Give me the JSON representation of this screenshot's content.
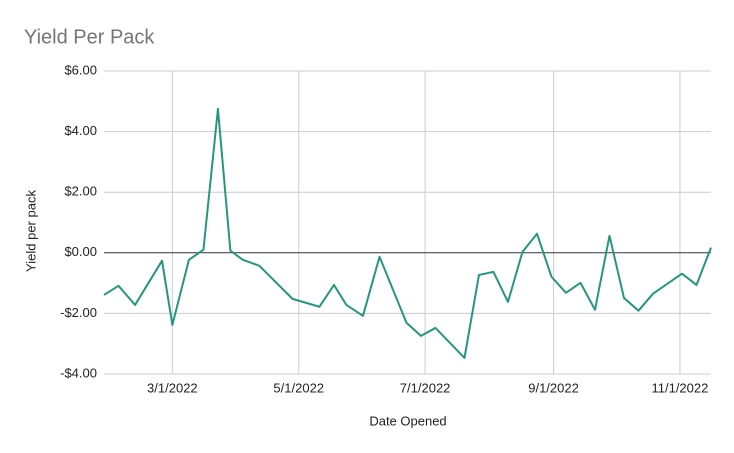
{
  "chart_data": {
    "type": "line",
    "title": "Yield Per Pack",
    "xlabel": "Date Opened",
    "ylabel": "Yield per pack",
    "x": [
      "2022-01-27",
      "2022-02-03",
      "2022-02-11",
      "2022-02-24",
      "2022-03-01",
      "2022-03-09",
      "2022-03-16",
      "2022-03-23",
      "2022-03-29",
      "2022-04-04",
      "2022-04-12",
      "2022-04-28",
      "2022-05-11",
      "2022-05-18",
      "2022-05-24",
      "2022-06-01",
      "2022-06-09",
      "2022-06-22",
      "2022-06-29",
      "2022-07-06",
      "2022-07-20",
      "2022-07-27",
      "2022-08-03",
      "2022-08-10",
      "2022-08-17",
      "2022-08-24",
      "2022-08-31",
      "2022-09-07",
      "2022-09-14",
      "2022-09-21",
      "2022-09-28",
      "2022-10-05",
      "2022-10-12",
      "2022-10-19",
      "2022-11-02",
      "2022-11-09",
      "2022-11-16"
    ],
    "series": [
      {
        "name": "Yield per pack",
        "color": "#26967e",
        "values": [
          -1.39,
          -1.09,
          -1.72,
          -0.26,
          -2.38,
          -0.23,
          0.1,
          4.75,
          0.07,
          -0.23,
          -0.43,
          -1.52,
          -1.78,
          -1.06,
          -1.72,
          -2.08,
          -0.13,
          -2.31,
          -2.74,
          -2.48,
          -3.47,
          -0.73,
          -0.63,
          -1.62,
          0.03,
          0.63,
          -0.79,
          -1.32,
          -0.99,
          -1.88,
          0.56,
          -1.49,
          -1.91,
          -1.35,
          -0.69,
          -1.06,
          0.17
        ]
      }
    ],
    "xlim": [
      "2022-01-27",
      "2022-11-16"
    ],
    "xticks": [
      {
        "value": "2022-03-01",
        "label": "3/1/2022"
      },
      {
        "value": "2022-05-01",
        "label": "5/1/2022"
      },
      {
        "value": "2022-07-01",
        "label": "7/1/2022"
      },
      {
        "value": "2022-09-01",
        "label": "9/1/2022"
      },
      {
        "value": "2022-11-01",
        "label": "11/1/2022"
      }
    ],
    "ylim": [
      -4,
      6
    ],
    "yticks": [
      {
        "value": -4,
        "label": "-$4.00"
      },
      {
        "value": -2,
        "label": "-$2.00"
      },
      {
        "value": 0,
        "label": "$0.00"
      },
      {
        "value": 2,
        "label": "$2.00"
      },
      {
        "value": 4,
        "label": "$4.00"
      },
      {
        "value": 6,
        "label": "$6.00"
      }
    ],
    "grid": true
  }
}
